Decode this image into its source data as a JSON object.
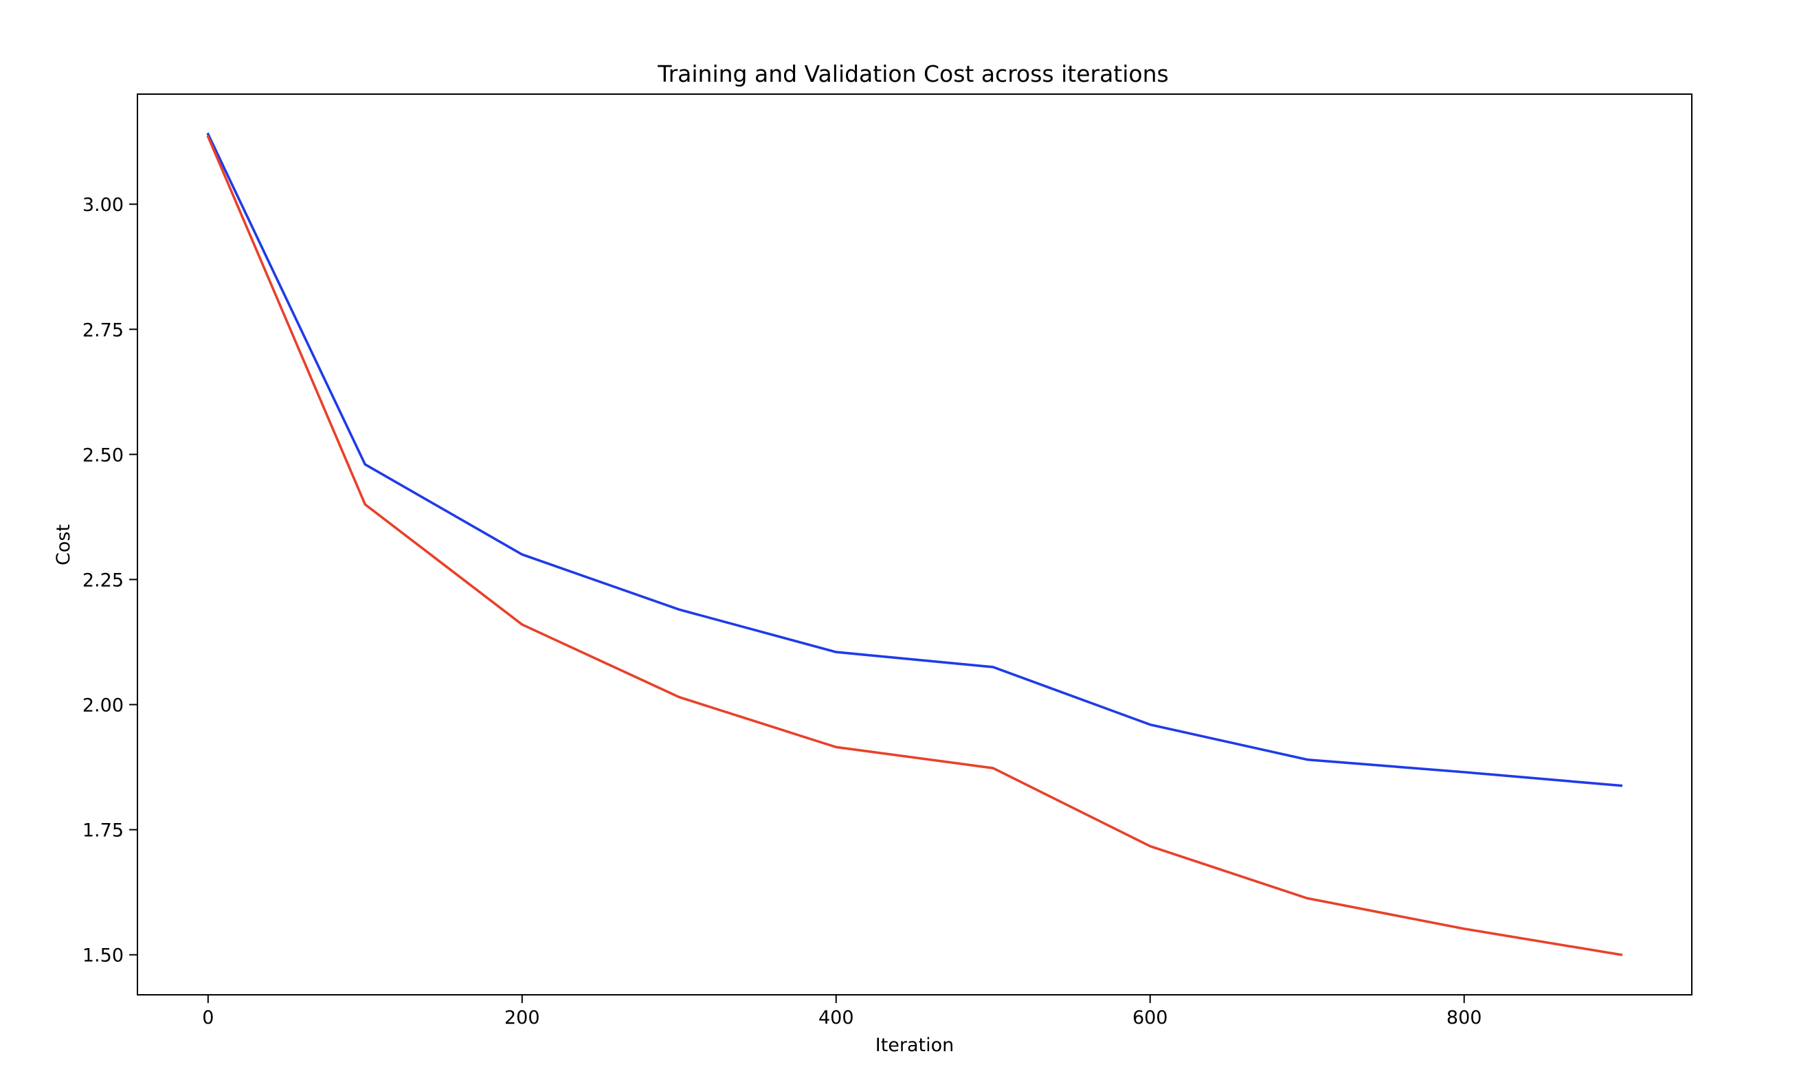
{
  "chart_data": {
    "type": "line",
    "title": "Training and Validation Cost across iterations",
    "xlabel": "Iteration",
    "ylabel": "Cost",
    "x": [
      0,
      100,
      200,
      300,
      400,
      500,
      600,
      700,
      800,
      900
    ],
    "series": [
      {
        "color": "#1f3be8",
        "values": [
          3.14,
          2.48,
          2.3,
          2.19,
          2.105,
          2.075,
          1.96,
          1.89,
          1.865,
          1.838
        ]
      },
      {
        "color": "#e8412a",
        "values": [
          3.135,
          2.4,
          2.16,
          2.015,
          1.915,
          1.873,
          1.717,
          1.613,
          1.552,
          1.5
        ]
      }
    ],
    "xlim": [
      -45,
      945
    ],
    "ylim": [
      1.42,
      3.22
    ],
    "xticks": [
      0,
      200,
      400,
      600,
      800
    ],
    "xtick_labels": [
      "0",
      "200",
      "400",
      "600",
      "800"
    ],
    "yticks": [
      1.5,
      1.75,
      2.0,
      2.25,
      2.5,
      2.75,
      3.0
    ],
    "ytick_labels": [
      "1.50",
      "1.75",
      "2.00",
      "2.25",
      "2.50",
      "2.75",
      "3.00"
    ],
    "grid": false,
    "legend": false
  }
}
